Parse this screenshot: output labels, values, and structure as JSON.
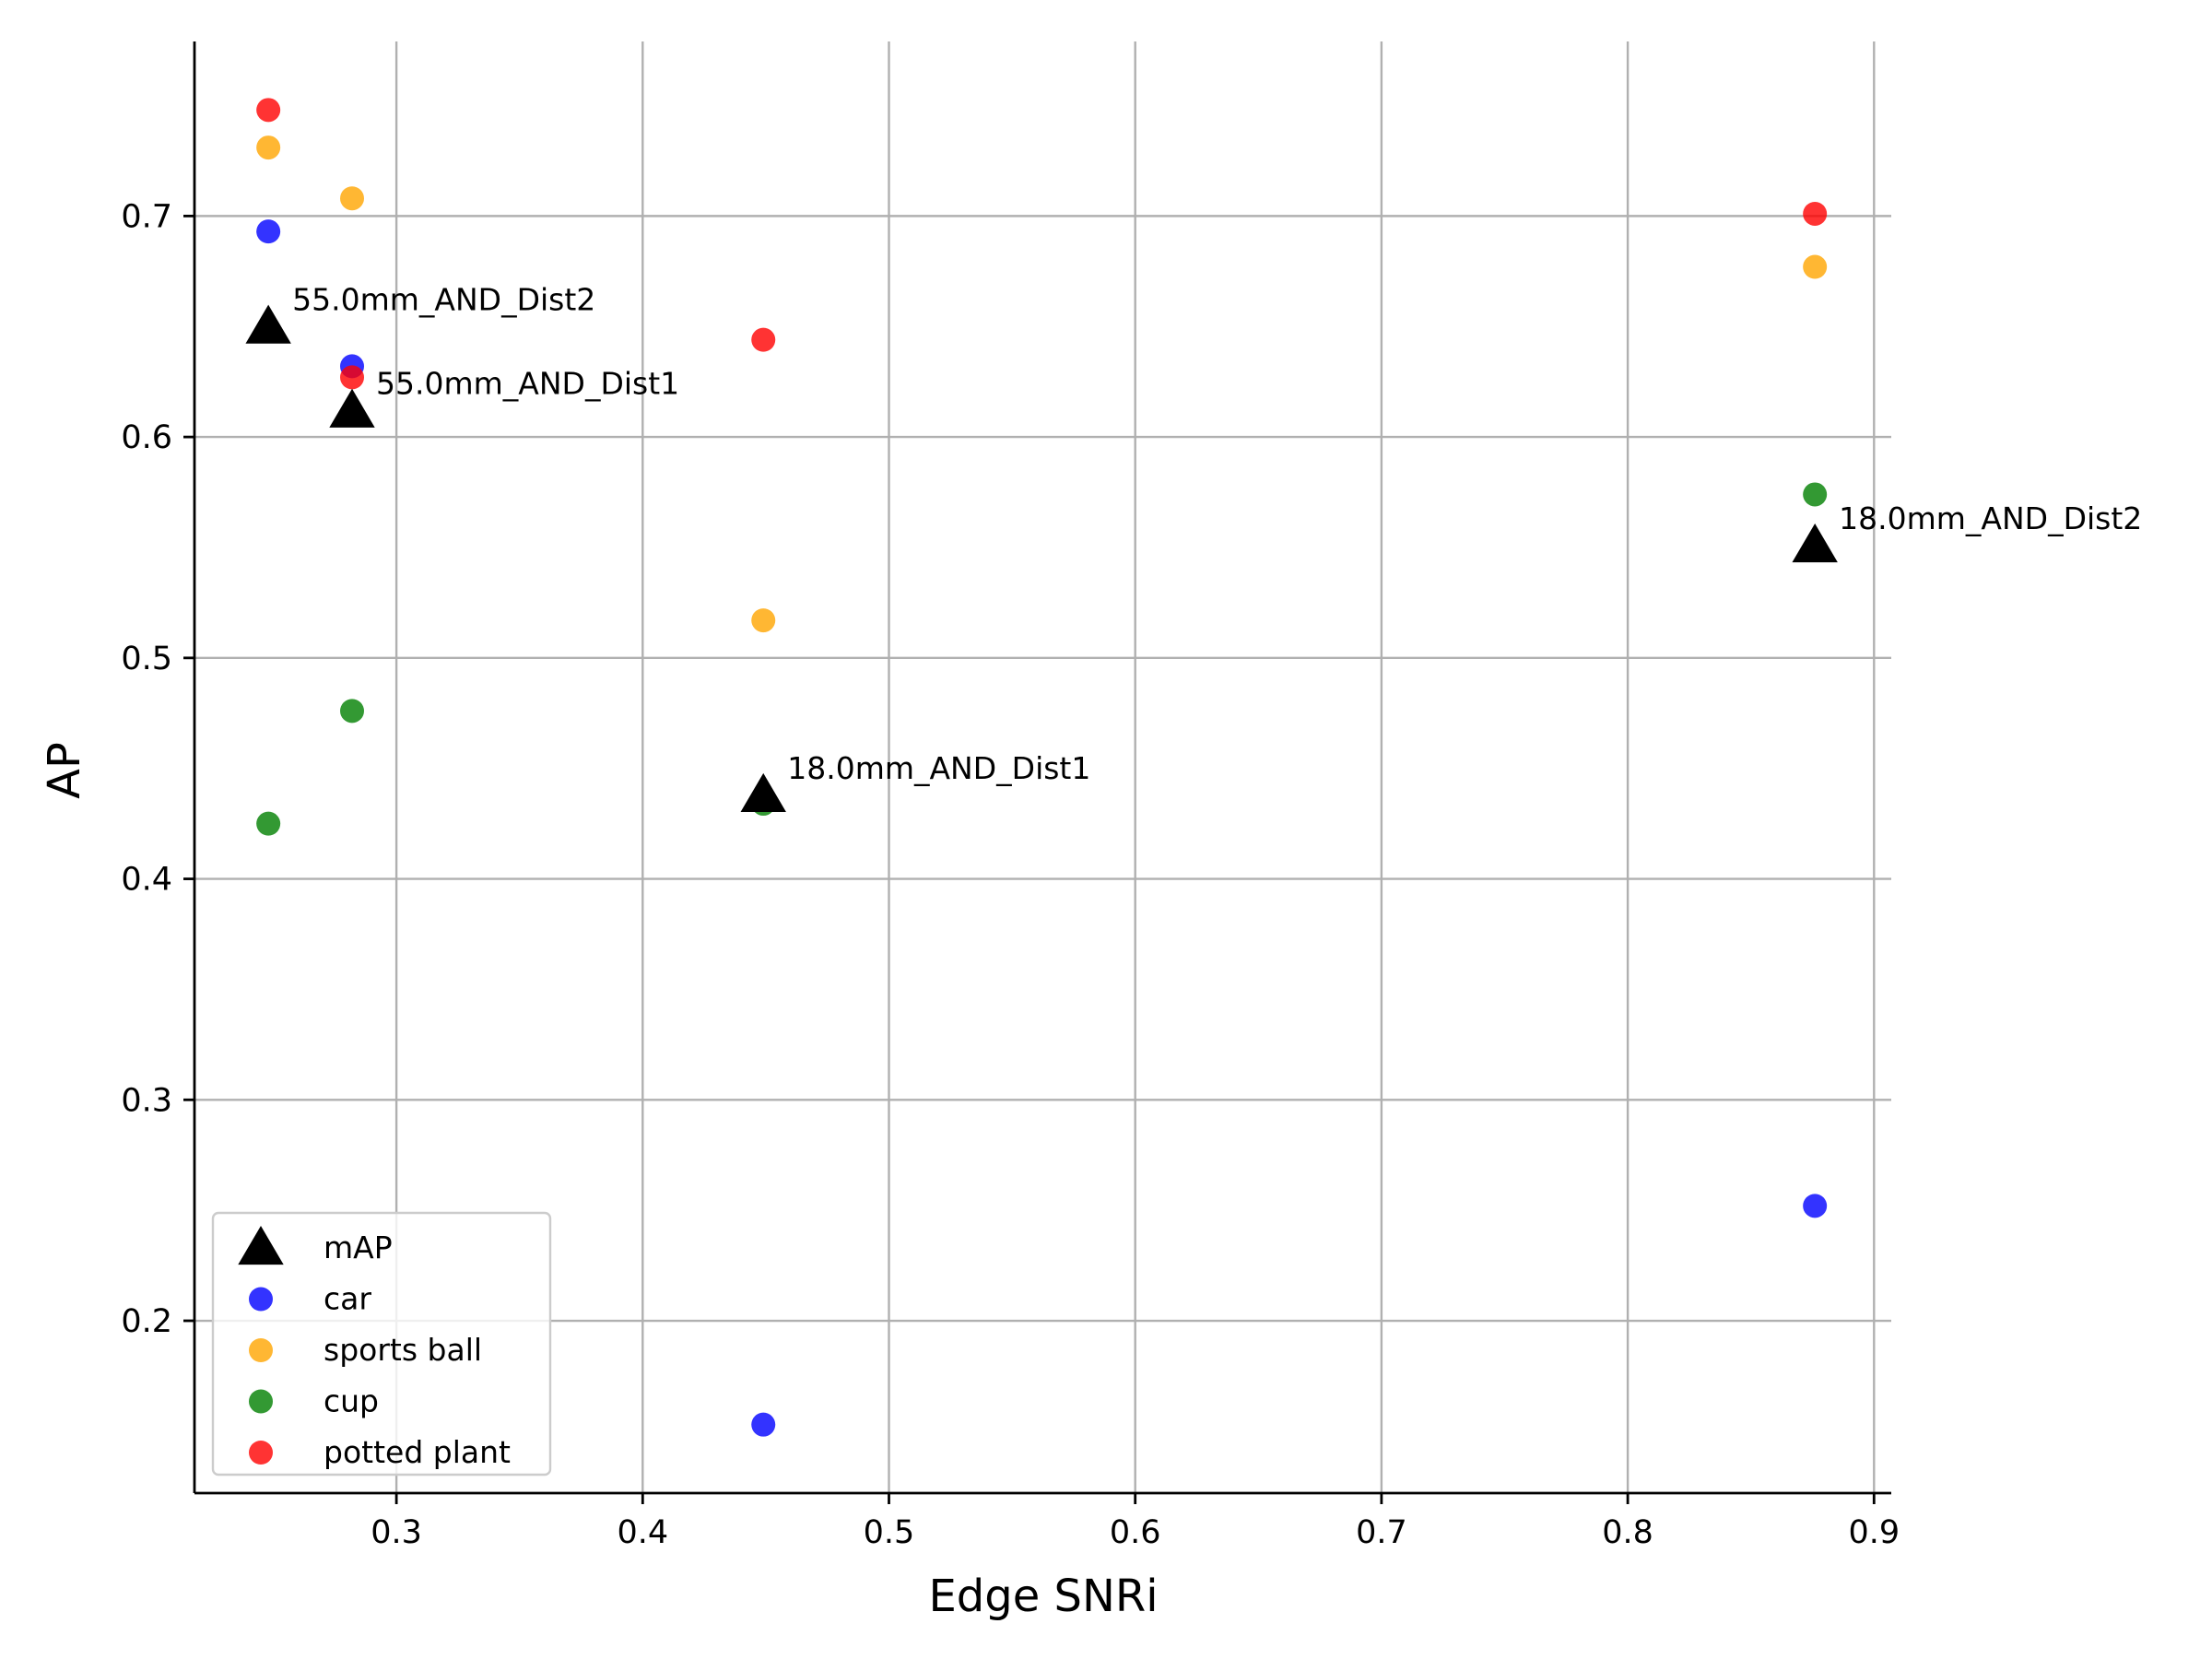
{
  "chart_data": {
    "type": "scatter",
    "xlabel": "Edge SNRi",
    "ylabel": "AP",
    "xlim": [
      0.218,
      0.907
    ],
    "ylim": [
      0.122,
      0.779
    ],
    "xticks": [
      0.3,
      0.4,
      0.5,
      0.6,
      0.7,
      0.8,
      0.9
    ],
    "yticks": [
      0.2,
      0.3,
      0.4,
      0.5,
      0.6,
      0.7
    ],
    "grid": true,
    "legend_position": "lower-left",
    "series": [
      {
        "name": "car",
        "color": "#0000ff",
        "marker": "circle",
        "points": [
          [
            0.248,
            0.693
          ],
          [
            0.282,
            0.632
          ],
          [
            0.449,
            0.153
          ],
          [
            0.876,
            0.252
          ]
        ]
      },
      {
        "name": "sports ball",
        "color": "#ffa500",
        "marker": "circle",
        "points": [
          [
            0.248,
            0.731
          ],
          [
            0.282,
            0.708
          ],
          [
            0.449,
            0.517
          ],
          [
            0.876,
            0.677
          ]
        ]
      },
      {
        "name": "cup",
        "color": "#008000",
        "marker": "circle",
        "points": [
          [
            0.248,
            0.425
          ],
          [
            0.282,
            0.476
          ],
          [
            0.449,
            0.434
          ],
          [
            0.876,
            0.574
          ]
        ]
      },
      {
        "name": "potted plant",
        "color": "#ff0000",
        "marker": "circle",
        "points": [
          [
            0.248,
            0.748
          ],
          [
            0.282,
            0.627
          ],
          [
            0.449,
            0.644
          ],
          [
            0.876,
            0.701
          ]
        ]
      },
      {
        "name": "mAP",
        "color": "#000000",
        "marker": "triangle",
        "points": [
          [
            0.248,
            0.649
          ],
          [
            0.282,
            0.611
          ],
          [
            0.449,
            0.437
          ],
          [
            0.876,
            0.55
          ]
        ],
        "labels": [
          "55.0mm_AND_Dist2",
          "55.0mm_AND_Dist1",
          "18.0mm_AND_Dist1",
          "18.0mm_AND_Dist2"
        ]
      }
    ],
    "legend_order": [
      "mAP",
      "car",
      "sports ball",
      "cup",
      "potted plant"
    ]
  }
}
